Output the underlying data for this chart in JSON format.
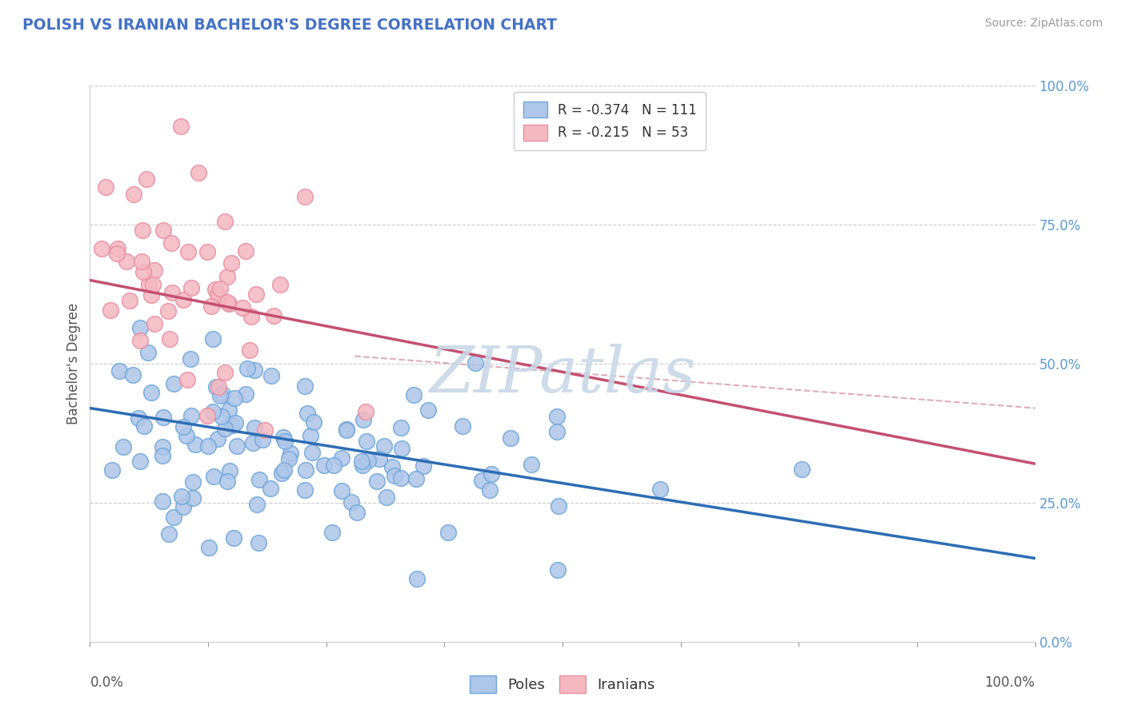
{
  "title": "POLISH VS IRANIAN BACHELOR'S DEGREE CORRELATION CHART",
  "source": "Source: ZipAtlas.com",
  "ylabel": "Bachelor's Degree",
  "right_yticklabels": [
    "0.0%",
    "25.0%",
    "50.0%",
    "75.0%",
    "100.0%"
  ],
  "legend1_label": "R = -0.374   N = 111",
  "legend2_label": "R = -0.215   N = 53",
  "poles_fill": "#aec6e8",
  "poles_edge": "#6fa8dc",
  "iranians_fill": "#f4b8c1",
  "iranians_edge": "#e991a0",
  "trend_poles_color": "#2e6db4",
  "trend_iranians_color": "#c45070",
  "dashed_color": "#d4899a",
  "watermark": "ZIPatlas",
  "watermark_color": "#c8d8e8",
  "poles_N": 111,
  "iranians_N": 53,
  "seed": 42
}
